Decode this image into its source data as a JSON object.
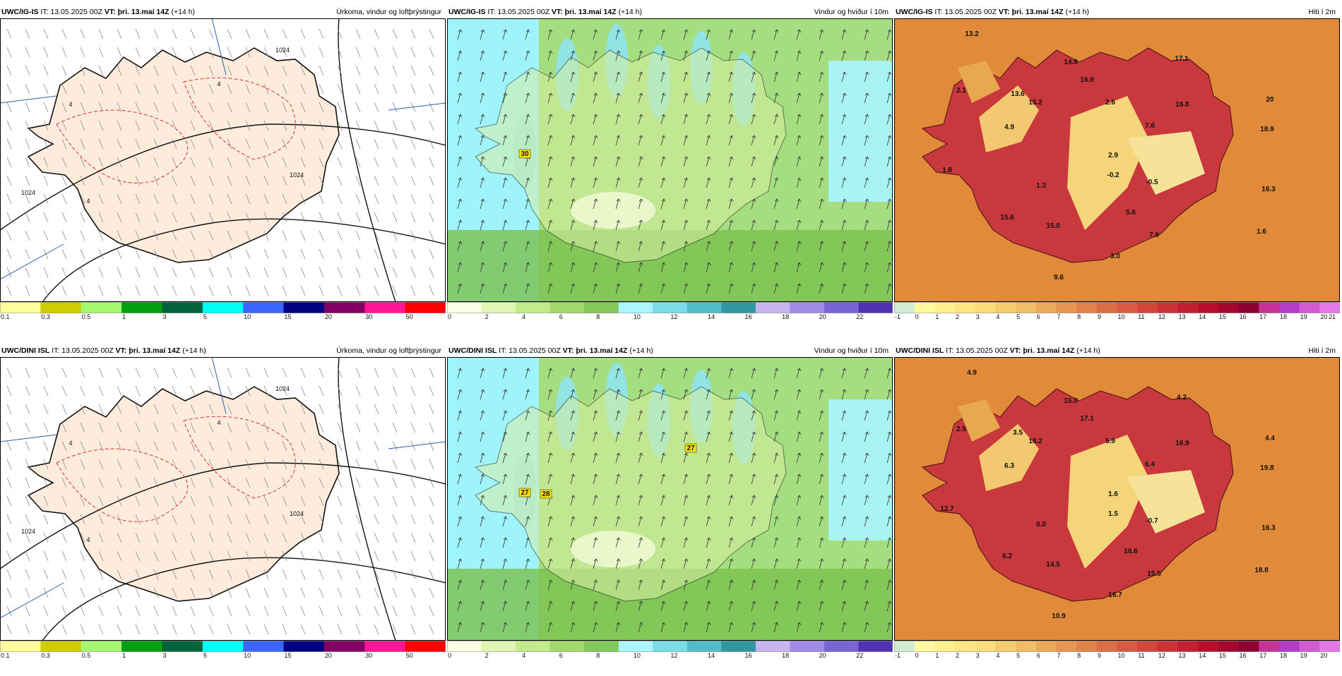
{
  "panels": [
    {
      "model_bold": "UWC/IG-IS",
      "it_text": " IT: 13.05.2025 00Z ",
      "vt_bold": "VT: þri. 13.maí 14Z",
      "lead": " (+14 h)",
      "title": "Úrkoma, vindur og loftþrýstingur",
      "kind": "precip",
      "color_scale": [
        "#fffe9a",
        "#cdcd00",
        "#a2f86e",
        "#02a010",
        "#02643c",
        "#00fff5",
        "#3c64ff",
        "#000080",
        "#820064",
        "#ff1493",
        "#ff0000"
      ],
      "scale_labels": [
        "0.1",
        "0.3",
        "0.5",
        "1",
        "3",
        "5",
        "10",
        "15",
        "20",
        "30",
        "50"
      ],
      "map_labels": [
        "1024",
        "1024",
        "1024",
        "4",
        "4",
        "4"
      ]
    },
    {
      "model_bold": "UWC/IG-IS",
      "it_text": " IT: 13.05.2025 00Z ",
      "vt_bold": "VT: þri. 13.maí 14Z",
      "lead": " (+14 h)",
      "title": "Vindur og hviður í 10m",
      "kind": "wind",
      "color_scale": [
        "#fbfee6",
        "#e1f6b4",
        "#c2eb8c",
        "#a2d86e",
        "#82c85a",
        "#aaf5ff",
        "#7adce6",
        "#50bcc8",
        "#3296a0",
        "#c8b4f0",
        "#a08ce6",
        "#7864d2",
        "#5032b4"
      ],
      "scale_labels": [
        "0",
        "2",
        "4",
        "6",
        "8",
        "10",
        "12",
        "14",
        "16",
        "18",
        "20",
        "22"
      ],
      "map_labels": [
        "30"
      ]
    },
    {
      "model_bold": "UWC/IG-IS",
      "it_text": " IT: 13.05.2025 00Z ",
      "vt_bold": "VT: þri. 13.maí 14Z",
      "lead": " (+14 h)",
      "title": "Hiti í 2m",
      "kind": "temp",
      "color_scale": [
        "#d2ecd2",
        "#fffaa0",
        "#fff08c",
        "#ffe682",
        "#fadc78",
        "#f5cd6e",
        "#f0be64",
        "#ebaa5a",
        "#e69650",
        "#e1824b",
        "#dc6e46",
        "#d75a41",
        "#d2463c",
        "#cd3237",
        "#c31e32",
        "#b90f2d",
        "#a5082d",
        "#8c0032",
        "#c83296",
        "#b43cc8",
        "#d25ad2",
        "#e678e6"
      ],
      "scale_labels": [
        "-1",
        "0",
        "1",
        "2",
        "3",
        "4",
        "5",
        "6",
        "7",
        "8",
        "9",
        "10",
        "11",
        "12",
        "13",
        "14",
        "15",
        "16",
        "17",
        "18",
        "19",
        "20",
        "21"
      ],
      "map_labels": [
        "13.2",
        "14.8",
        "17.1",
        "2.1",
        "13.6",
        "16.9",
        "15.2",
        "2.6",
        "16.8",
        "4.9",
        "7.6",
        "20",
        "18.9",
        "2.9",
        "1.8",
        "-0.2",
        "1.3",
        "-0.5",
        "16.3",
        "15.6",
        "5.6",
        "15.0",
        "7.9",
        "1.6",
        "3.0",
        "9.6"
      ]
    },
    {
      "model_bold": "UWC/DINI ISL",
      "it_text": " IT: 13.05.2025 00Z ",
      "vt_bold": "VT: þri. 13.maí 14Z",
      "lead": " (+14 h)",
      "title": "Úrkoma, vindur og loftþrýstingur",
      "kind": "precip",
      "color_scale": [
        "#fffe9a",
        "#cdcd00",
        "#a2f86e",
        "#02a010",
        "#02643c",
        "#00fff5",
        "#3c64ff",
        "#000080",
        "#820064",
        "#ff1493",
        "#ff0000"
      ],
      "scale_labels": [
        "0.1",
        "0.3",
        "0.5",
        "1",
        "3",
        "5",
        "10",
        "15",
        "20",
        "30",
        "50"
      ],
      "map_labels": [
        "1024",
        "1024",
        "1024",
        "4",
        "4",
        "4"
      ]
    },
    {
      "model_bold": "UWC/DINI ISL",
      "it_text": " IT: 13.05.2025 00Z ",
      "vt_bold": "VT: þri. 13.maí 14Z",
      "lead": " (+14 h)",
      "title": "Vindur og hviður í 10m",
      "kind": "wind",
      "color_scale": [
        "#fbfee6",
        "#e1f6b4",
        "#c2eb8c",
        "#a2d86e",
        "#82c85a",
        "#aaf5ff",
        "#7adce6",
        "#50bcc8",
        "#3296a0",
        "#c8b4f0",
        "#a08ce6",
        "#7864d2",
        "#5032b4"
      ],
      "scale_labels": [
        "0",
        "2",
        "4",
        "6",
        "8",
        "10",
        "12",
        "14",
        "16",
        "18",
        "20",
        "22"
      ],
      "map_labels": [
        "27",
        "27",
        "28"
      ]
    },
    {
      "model_bold": "UWC/DINI ISL",
      "it_text": " IT: 13.05.2025 00Z ",
      "vt_bold": "VT: þri. 13.maí 14Z",
      "lead": " (+14 h)",
      "title": "Hiti í 2m",
      "kind": "temp",
      "color_scale": [
        "#d2ecd2",
        "#fffaa0",
        "#fff08c",
        "#ffe682",
        "#fadc78",
        "#f5cd6e",
        "#f0be64",
        "#ebaa5a",
        "#e69650",
        "#e1824b",
        "#dc6e46",
        "#d75a41",
        "#d2463c",
        "#cd3237",
        "#c31e32",
        "#b90f2d",
        "#a5082d",
        "#8c0032",
        "#c83296",
        "#b43cc8",
        "#d25ad2",
        "#e678e6"
      ],
      "scale_labels": [
        "-1",
        "0",
        "1",
        "2",
        "3",
        "4",
        "5",
        "6",
        "7",
        "8",
        "9",
        "10",
        "11",
        "12",
        "13",
        "14",
        "15",
        "16",
        "17",
        "18",
        "19",
        "20"
      ],
      "map_labels": [
        "4.9",
        "15.0",
        "4.2",
        "2.5",
        "3.5",
        "17.1",
        "18.2",
        "5.9",
        "16.9",
        "6.3",
        "6.4",
        "4.4",
        "19.8",
        "1.6",
        "12.7",
        "1.5",
        "0.0",
        "-0.7",
        "16.3",
        "6.2",
        "16.6",
        "14.5",
        "15.5",
        "18.8",
        "16.7",
        "10.9"
      ]
    }
  ]
}
